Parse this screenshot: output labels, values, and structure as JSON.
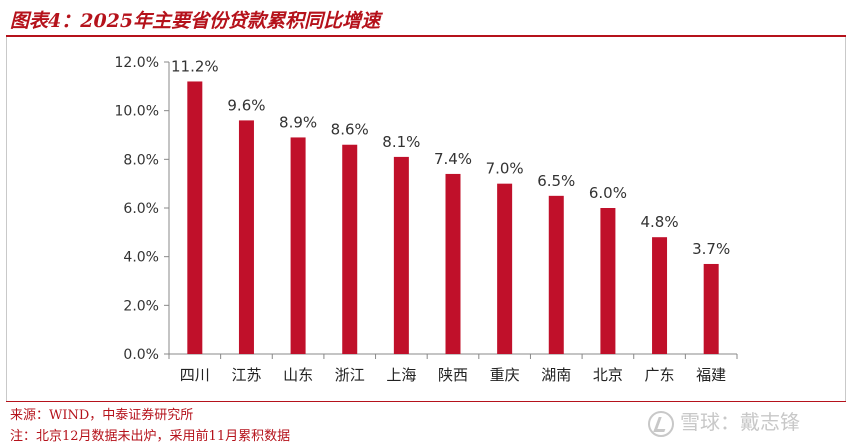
{
  "header": {
    "title": "图表4：2025年主要省份贷款累积同比增速"
  },
  "footer": {
    "source": "来源：WIND，中泰证券研究所",
    "note": "注：北京12月数据未出炉，采用前11月累积数据"
  },
  "watermark": {
    "text": "雪球：戴志锋"
  },
  "colors": {
    "bar": "#c0102a",
    "accent": "#b5121b"
  },
  "chart_data": {
    "type": "bar",
    "categories": [
      "四川",
      "江苏",
      "山东",
      "浙江",
      "上海",
      "陕西",
      "重庆",
      "湖南",
      "北京",
      "广东",
      "福建"
    ],
    "values": [
      11.2,
      9.6,
      8.9,
      8.6,
      8.1,
      7.4,
      7.0,
      6.5,
      6.0,
      4.8,
      3.7
    ],
    "value_labels": [
      "11.2%",
      "9.6%",
      "8.9%",
      "8.6%",
      "8.1%",
      "7.4%",
      "7.0%",
      "6.5%",
      "6.0%",
      "4.8%",
      "3.7%"
    ],
    "yticks": [
      0,
      2,
      4,
      6,
      8,
      10,
      12
    ],
    "ytick_labels": [
      "0.0%",
      "2.0%",
      "4.0%",
      "6.0%",
      "8.0%",
      "10.0%",
      "12.0%"
    ],
    "ylim": [
      0,
      12
    ],
    "grid": false,
    "legend": "none"
  }
}
